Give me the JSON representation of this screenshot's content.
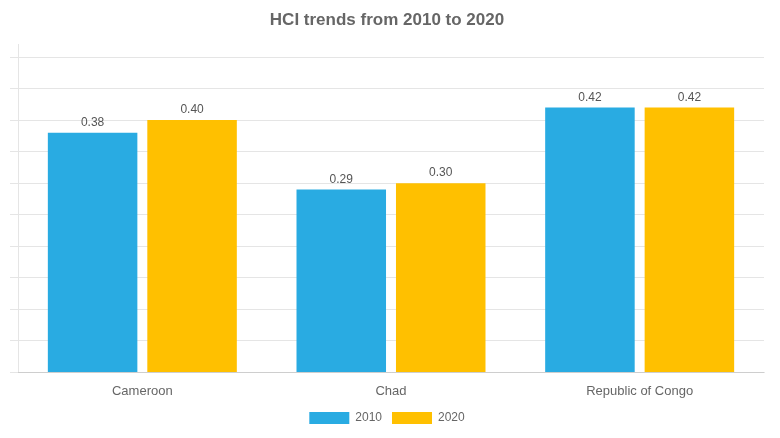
{
  "chart_data": {
    "type": "bar",
    "title": "HCI trends from 2010 to 2020",
    "categories": [
      "Cameroon",
      "Chad",
      "Republic of Congo"
    ],
    "series": [
      {
        "name": "2010",
        "color": "#29ABE2",
        "values": [
          0.38,
          0.29,
          0.42
        ],
        "value_labels": [
          "0.38",
          "0.29",
          "0.42"
        ]
      },
      {
        "name": "2020",
        "color": "#FFC000",
        "values": [
          0.4,
          0.3,
          0.42
        ],
        "value_labels": [
          "0.40",
          "0.30",
          "0.42"
        ]
      }
    ],
    "ylim": [
      0,
      0.52
    ],
    "yticks": [
      0,
      0.05,
      0.1,
      0.15,
      0.2,
      0.25,
      0.3,
      0.35,
      0.4,
      0.45,
      0.5
    ],
    "grid": true,
    "legend": "bottom",
    "data_labels": true,
    "tick_labels": "x"
  }
}
